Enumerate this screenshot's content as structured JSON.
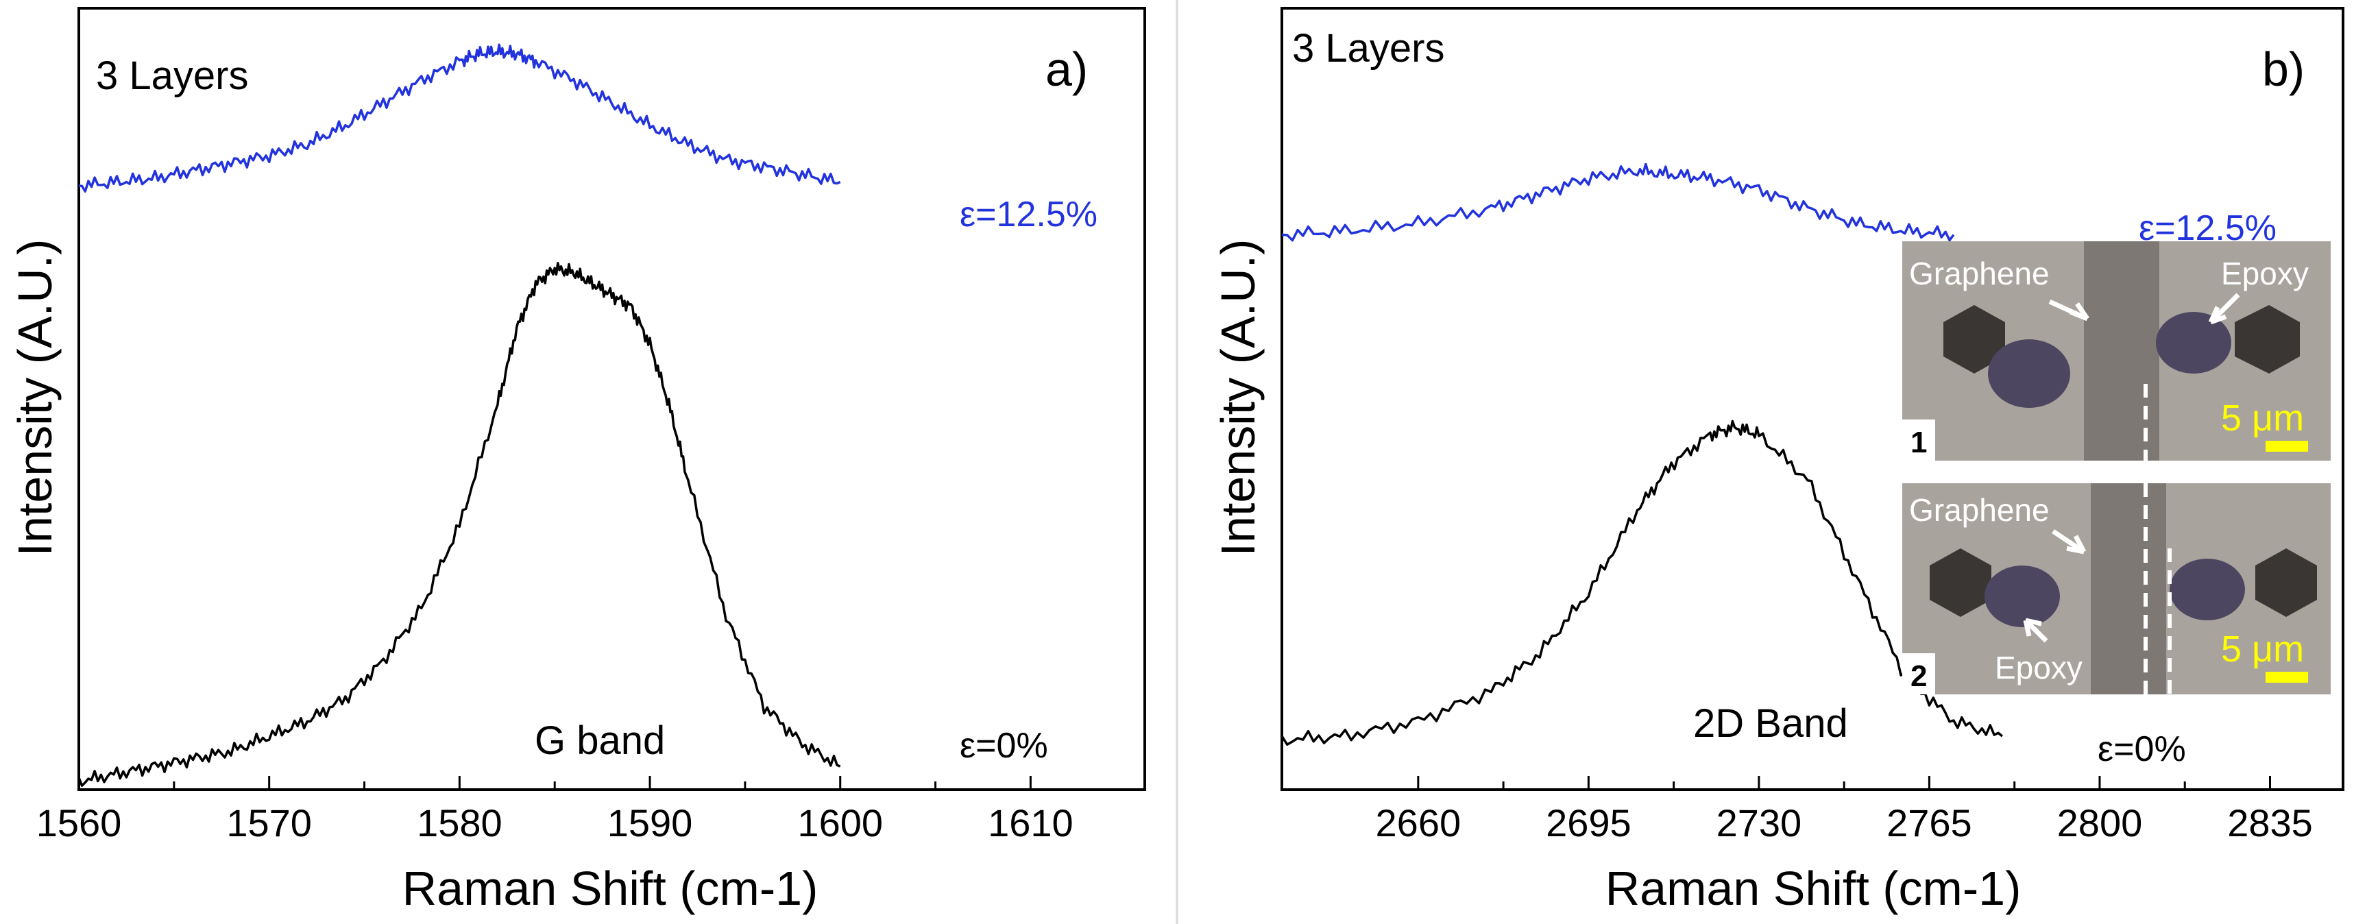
{
  "chart_data": [
    {
      "type": "line",
      "panel_label": "a)",
      "layer_label": "3 Layers",
      "band_label": "G band",
      "xlabel": "Raman Shift (cm-1)",
      "ylabel": "Intensity (A.U.)",
      "xlim": [
        1560,
        1616
      ],
      "ylim": [
        0,
        1.0
      ],
      "x_ticks": [
        1560,
        1570,
        1580,
        1590,
        1600,
        1610
      ],
      "series": [
        {
          "name": "ε=12.5%",
          "color": "#2233dd",
          "x": [
            1560,
            1562,
            1564,
            1566,
            1568,
            1570,
            1572,
            1574,
            1576,
            1578,
            1580,
            1581,
            1582,
            1583,
            1584,
            1586,
            1588,
            1590,
            1592,
            1594,
            1596,
            1598,
            1600
          ],
          "y": [
            0.79,
            0.795,
            0.8,
            0.81,
            0.82,
            0.83,
            0.845,
            0.87,
            0.9,
            0.93,
            0.955,
            0.965,
            0.968,
            0.965,
            0.955,
            0.93,
            0.9,
            0.87,
            0.845,
            0.825,
            0.815,
            0.805,
            0.795
          ]
        },
        {
          "name": "ε=0%",
          "color": "#000000",
          "x": [
            1560,
            1562,
            1564,
            1566,
            1568,
            1570,
            1572,
            1574,
            1576,
            1578,
            1580,
            1582,
            1583,
            1584,
            1585,
            1586,
            1587,
            1588,
            1589,
            1590,
            1591,
            1592,
            1594,
            1596,
            1598,
            1600
          ],
          "y": [
            0.0,
            0.01,
            0.02,
            0.03,
            0.04,
            0.06,
            0.08,
            0.11,
            0.16,
            0.23,
            0.34,
            0.5,
            0.6,
            0.66,
            0.68,
            0.675,
            0.66,
            0.645,
            0.63,
            0.58,
            0.5,
            0.4,
            0.22,
            0.1,
            0.05,
            0.02
          ]
        }
      ],
      "annotations": [
        "ε=12.5%",
        "ε=0%"
      ]
    },
    {
      "type": "line",
      "panel_label": "b)",
      "layer_label": "3 Layers",
      "band_label": "2D Band",
      "xlabel": "Raman Shift (cm-1)",
      "ylabel": "Intensity (A.U.)",
      "xlim": [
        2632,
        2850
      ],
      "ylim": [
        0,
        1.0
      ],
      "x_ticks": [
        2660,
        2695,
        2730,
        2765,
        2800,
        2835
      ],
      "series": [
        {
          "name": "ε=12.5%",
          "color": "#2233dd",
          "x": [
            2632,
            2645,
            2660,
            2675,
            2685,
            2695,
            2705,
            2712,
            2720,
            2730,
            2740,
            2750,
            2760,
            2770
          ],
          "y": [
            0.725,
            0.73,
            0.74,
            0.76,
            0.78,
            0.8,
            0.81,
            0.805,
            0.8,
            0.785,
            0.76,
            0.74,
            0.73,
            0.725
          ]
        },
        {
          "name": "ε=0%",
          "color": "#000000",
          "x": [
            2632,
            2645,
            2660,
            2675,
            2685,
            2695,
            2705,
            2712,
            2720,
            2725,
            2730,
            2740,
            2750,
            2760,
            2770,
            2780
          ],
          "y": [
            0.055,
            0.06,
            0.08,
            0.12,
            0.17,
            0.25,
            0.36,
            0.42,
            0.46,
            0.47,
            0.46,
            0.4,
            0.27,
            0.14,
            0.08,
            0.06
          ]
        }
      ],
      "annotations": [
        "ε=12.5%",
        "ε=0%"
      ],
      "inset": {
        "panels": [
          {
            "number": "1",
            "labels": [
              "Graphene",
              "Epoxy"
            ],
            "scale": "5 μm"
          },
          {
            "number": "2",
            "labels": [
              "Graphene",
              "Epoxy"
            ],
            "scale": "5 μm"
          }
        ]
      }
    }
  ]
}
